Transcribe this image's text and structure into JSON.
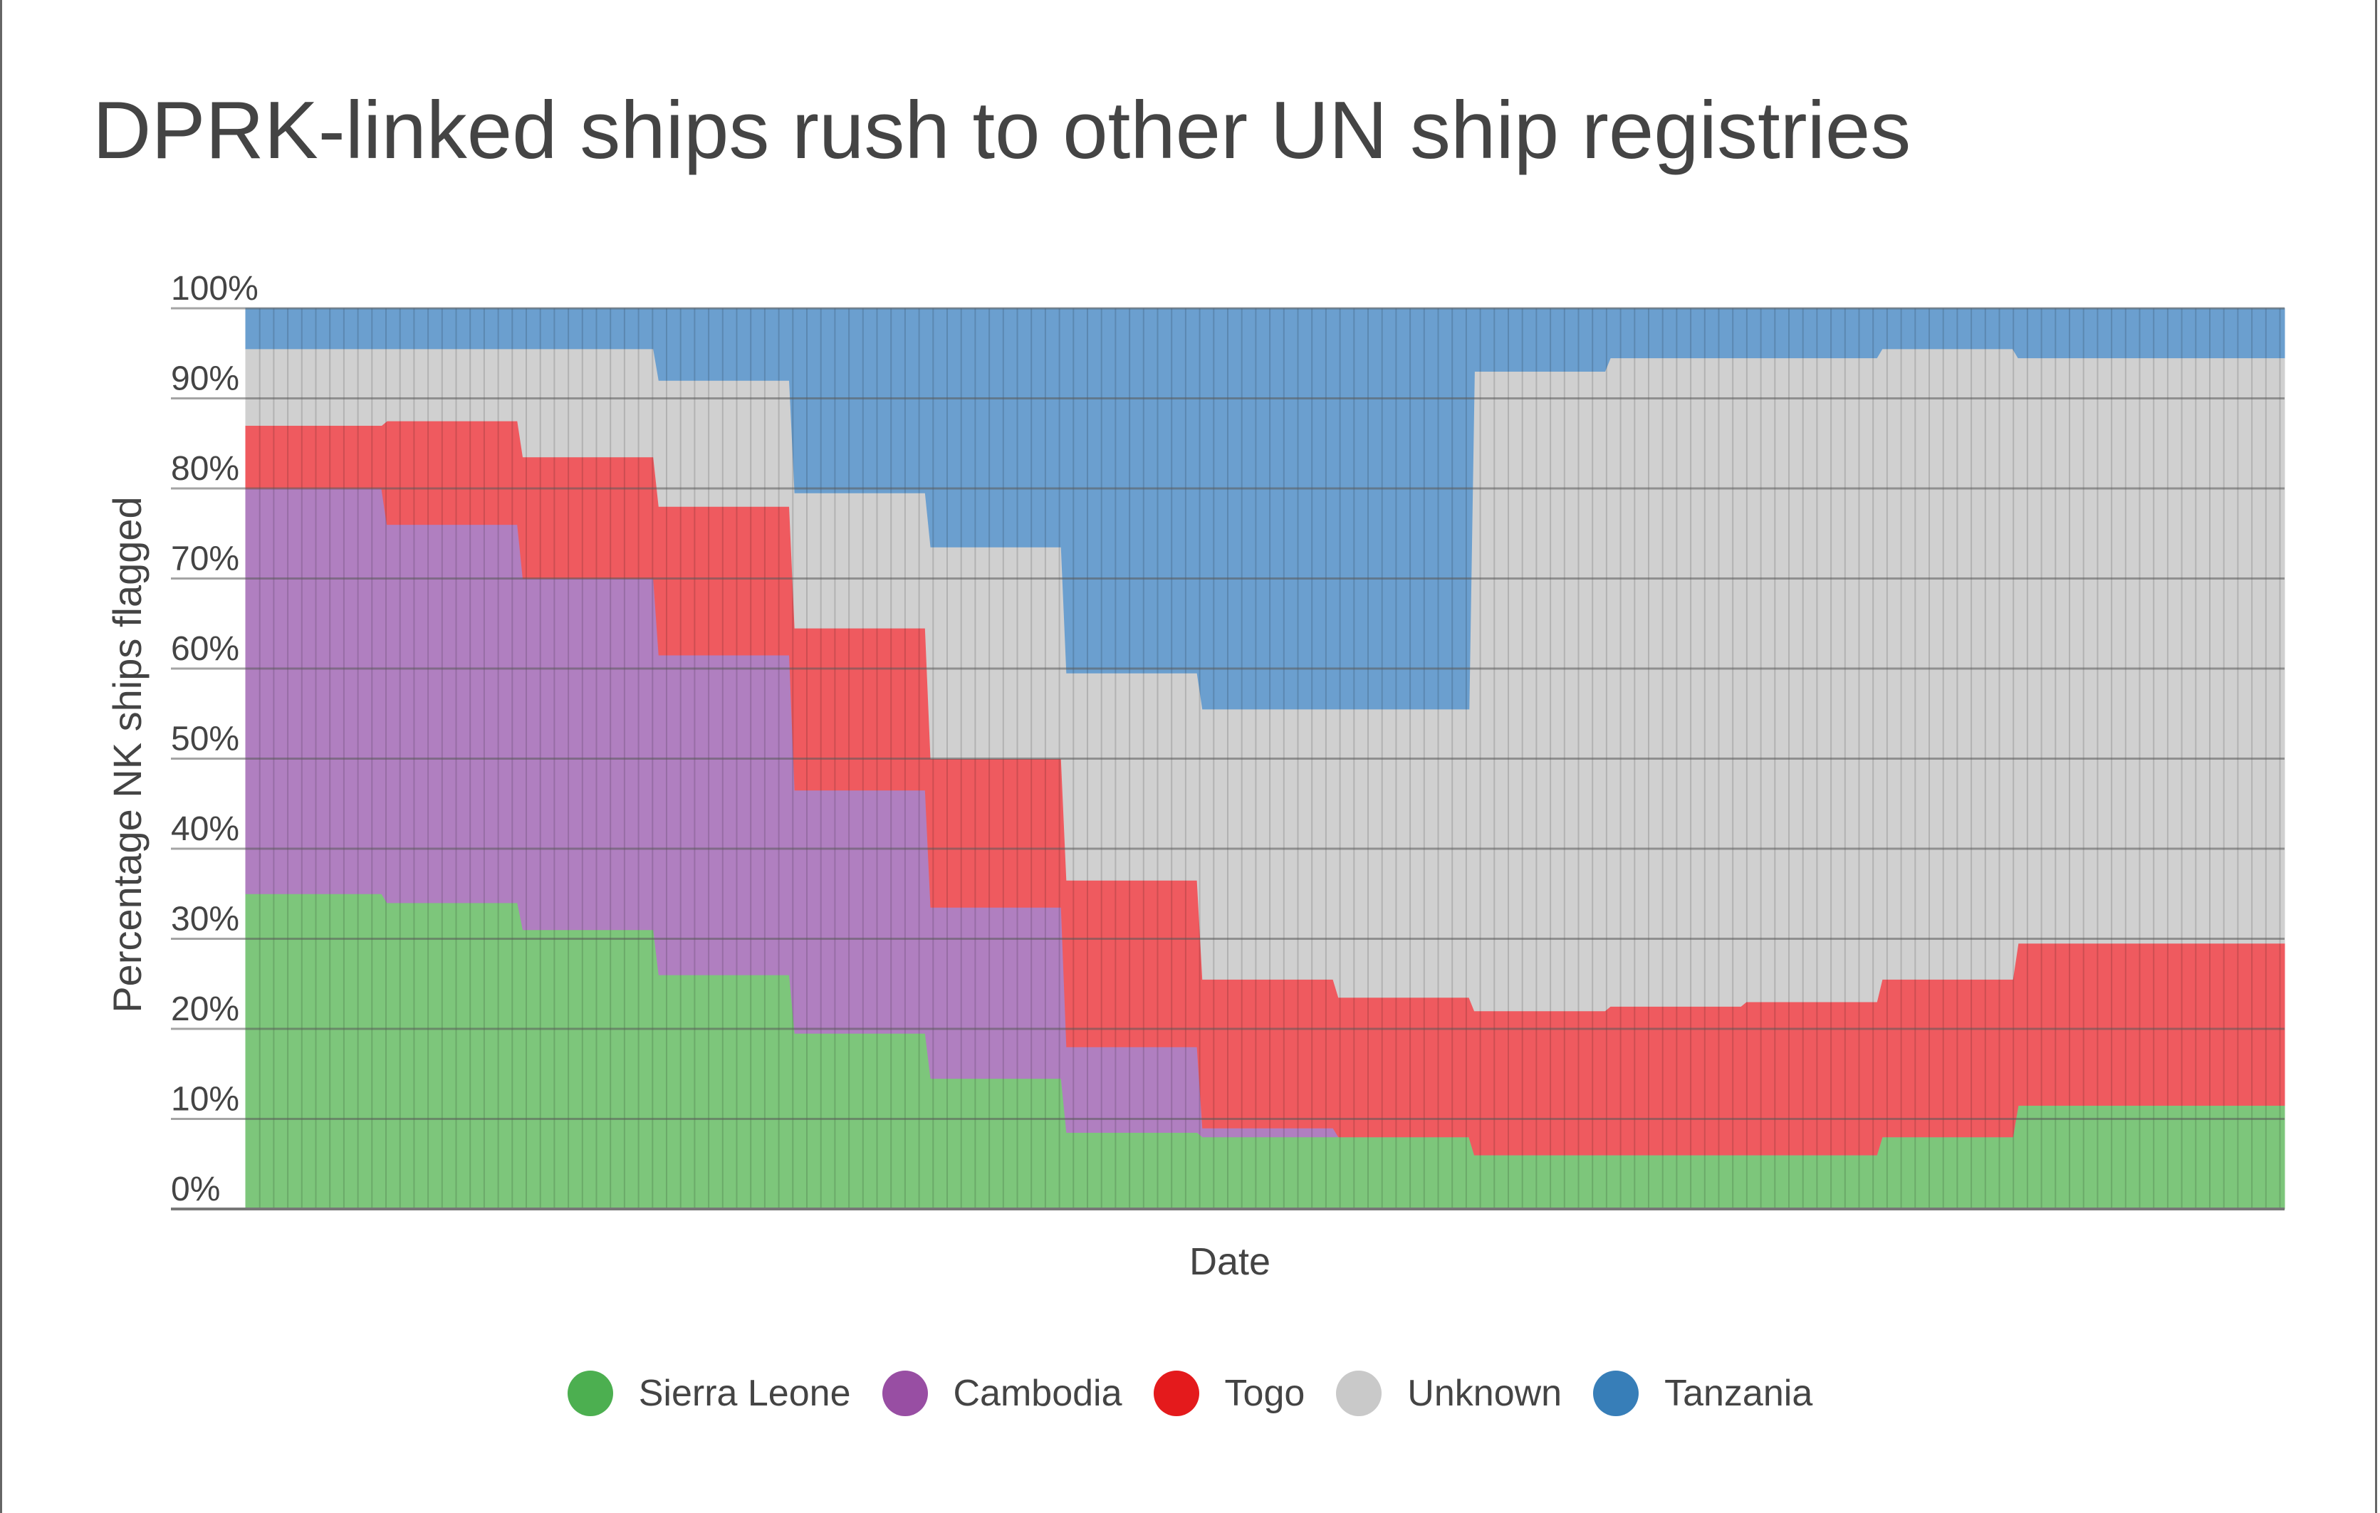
{
  "title": "DPRK-linked ships rush to other UN ship registries",
  "chart_data": {
    "type": "area",
    "stacked": true,
    "normalized_percent": true,
    "title": "DPRK-linked ships rush to other UN ship registries",
    "xlabel": "Date",
    "ylabel": "Percentage NK ships flagged",
    "ylim": [
      0,
      100
    ],
    "y_ticks": [
      "0%",
      "10%",
      "20%",
      "30%",
      "40%",
      "50%",
      "60%",
      "70%",
      "80%",
      "90%",
      "100%"
    ],
    "x_tick_labels_shown": false,
    "grid": true,
    "legend_position": "bottom",
    "x": [
      0,
      1,
      2,
      3,
      4,
      5,
      6,
      7,
      8,
      9,
      10,
      11,
      12,
      13,
      14
    ],
    "series": [
      {
        "name": "Sierra Leone",
        "color": "#4caf50",
        "fill": "#7dc67b",
        "values": [
          35,
          34,
          31,
          26,
          19.5,
          14.5,
          8.5,
          8,
          8,
          6,
          6,
          6,
          8,
          11.5,
          11.5
        ]
      },
      {
        "name": "Cambodia",
        "color": "#984ea3",
        "fill": "#b07fc0",
        "values": [
          45,
          42,
          39,
          35.5,
          27,
          19,
          9.5,
          1,
          0,
          0,
          0,
          0,
          0,
          0,
          0
        ]
      },
      {
        "name": "Togo",
        "color": "#e41a1c",
        "fill": "#ef5a5f",
        "values": [
          7,
          11.5,
          13.5,
          16.5,
          18,
          16.5,
          18.5,
          16.5,
          15.5,
          16,
          16.5,
          17,
          17.5,
          18,
          18
        ]
      },
      {
        "name": "Unknown",
        "color": "#c9c9c9",
        "fill": "#d0d0d0",
        "values": [
          8.5,
          8,
          12,
          14,
          15,
          23.5,
          23,
          30,
          32,
          71,
          72,
          71.5,
          70,
          65,
          65
        ]
      },
      {
        "name": "Tanzania",
        "color": "#377eb8",
        "fill": "#6b9fcf",
        "values": [
          4.5,
          4.5,
          4.5,
          8,
          20.5,
          26.5,
          40.5,
          44.5,
          44.5,
          7,
          5.5,
          5.5,
          4.5,
          5.5,
          5.5
        ]
      }
    ]
  }
}
